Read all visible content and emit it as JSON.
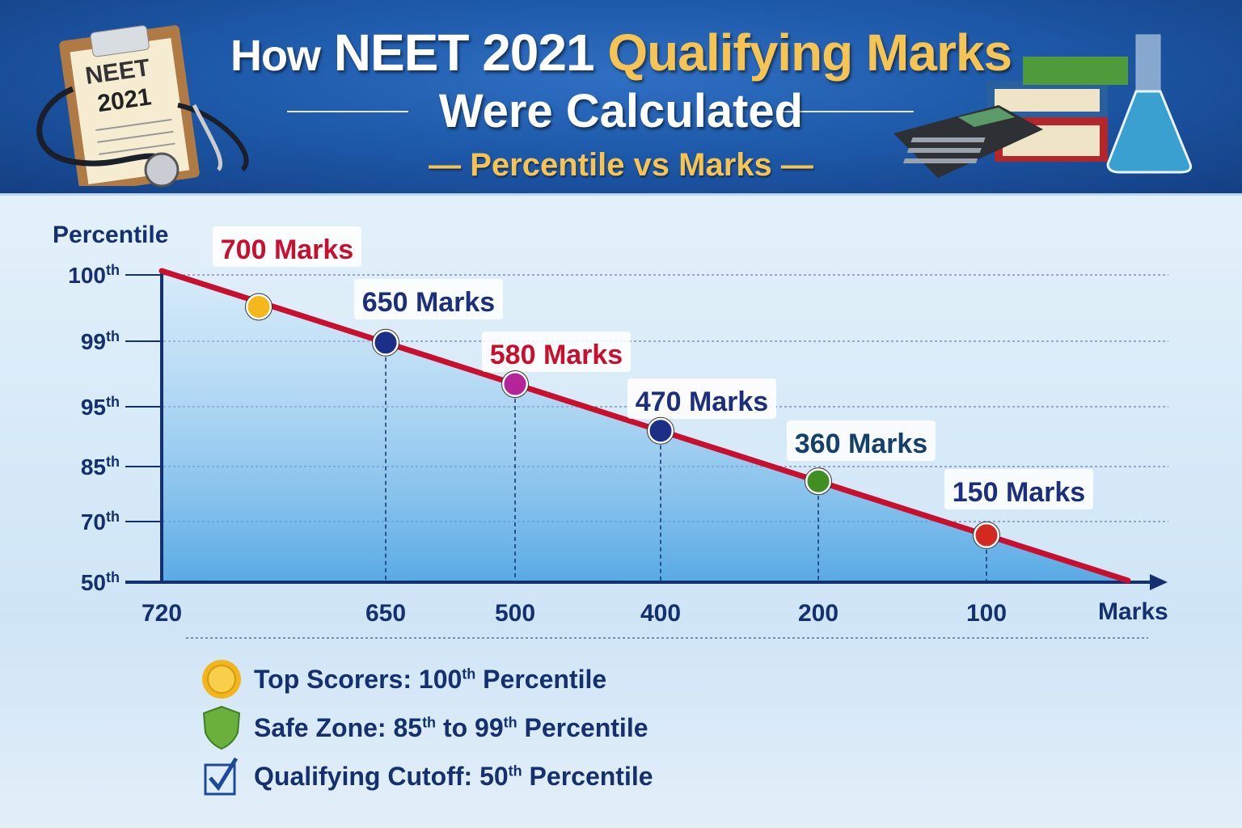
{
  "header": {
    "title_prefix": "How",
    "title_main": "NEET 2021",
    "title_highlight": "Qualifying Marks",
    "title_line2": "Were Calculated",
    "subtitle": "— Percentile vs Marks —",
    "clipboard_text_1": "NEET",
    "clipboard_text_2": "2021",
    "icons": [
      "clipboard-icon",
      "stethoscope-icon",
      "calculator-icon",
      "books-icon",
      "flask-icon"
    ]
  },
  "chart_data": {
    "type": "line",
    "ylabel": "Percentile",
    "xlabel": "Marks",
    "y_ticks": [
      {
        "value": "100",
        "suffix": "th"
      },
      {
        "value": "99",
        "suffix": "th"
      },
      {
        "value": "95",
        "suffix": "th"
      },
      {
        "value": "85",
        "suffix": "th"
      },
      {
        "value": "70",
        "suffix": "th"
      },
      {
        "value": "50",
        "suffix": "th"
      }
    ],
    "x_ticks": [
      "720",
      "650",
      "500",
      "400",
      "200",
      "100"
    ],
    "grid": true,
    "line_color": "#c8102e",
    "points": [
      {
        "label": "700 Marks",
        "label_color": "#c8102e",
        "marker_color": "#f4b81c"
      },
      {
        "label": "650 Marks",
        "label_color": "#1b2f7a",
        "marker_color": "#1c2f86"
      },
      {
        "label": "580 Marks",
        "label_color": "#c8102e",
        "marker_color": "#b5259a"
      },
      {
        "label": "470 Marks",
        "label_color": "#1b2f7a",
        "marker_color": "#1c2f86"
      },
      {
        "label": "360 Marks",
        "label_color": "#15406a",
        "marker_color": "#3f8f22"
      },
      {
        "label": "150 Marks",
        "label_color": "#1b2f7a",
        "marker_color": "#d22a1f"
      }
    ]
  },
  "legend": [
    {
      "icon": "gold-medal-icon",
      "before": "Top Scorers: 100",
      "sup": "th",
      "after": " Percentile"
    },
    {
      "icon": "shield-icon",
      "before": "Safe Zone: 85",
      "sup": "th",
      "mid": " to 99",
      "sup2": "th",
      "after": " Percentile"
    },
    {
      "icon": "checkbox-icon",
      "before": "Qualifying Cutoff: 50",
      "sup": "th",
      "after": " Percentile"
    }
  ]
}
